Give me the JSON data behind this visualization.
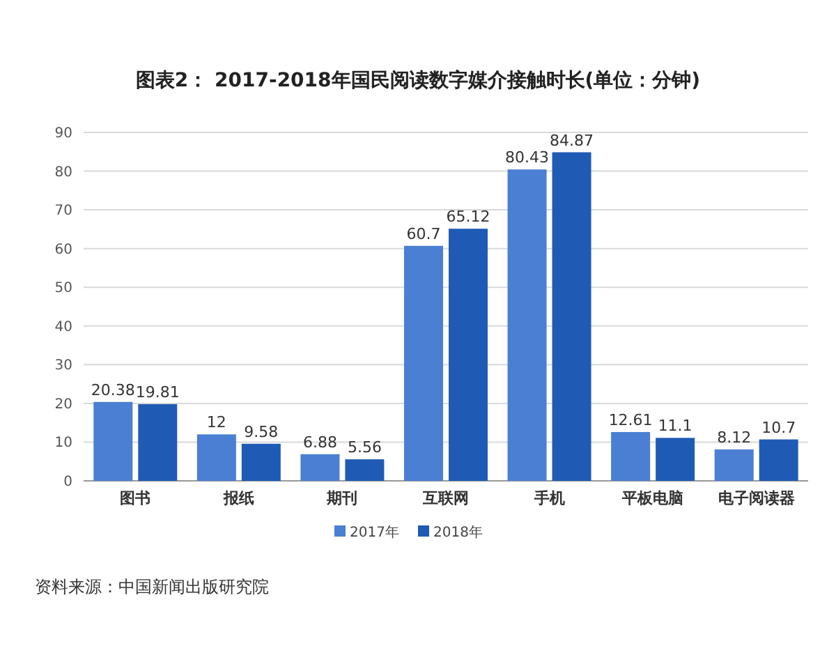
{
  "chart_data": {
    "type": "bar",
    "title": "图表2： 2017-2018年国民阅读数字媒介接触时长(单位：分钟)",
    "categories": [
      "图书",
      "报纸",
      "期刊",
      "互联网",
      "手机",
      "平板电脑",
      "电子阅读器"
    ],
    "series": [
      {
        "name": "2017年",
        "color": "#4a7fd3",
        "values": [
          20.38,
          12,
          6.88,
          60.7,
          80.43,
          12.61,
          8.12
        ]
      },
      {
        "name": "2018年",
        "color": "#1f5bb5",
        "values": [
          19.81,
          9.58,
          5.56,
          65.12,
          84.87,
          11.1,
          10.7
        ]
      }
    ],
    "ylim": [
      0,
      90
    ],
    "yticks": [
      0,
      10,
      20,
      30,
      40,
      50,
      60,
      70,
      80,
      90
    ],
    "grid": "y",
    "legend": "bottom",
    "data_labels": true,
    "annotations": [
      "资料来源：中国新闻出版研究院"
    ]
  }
}
